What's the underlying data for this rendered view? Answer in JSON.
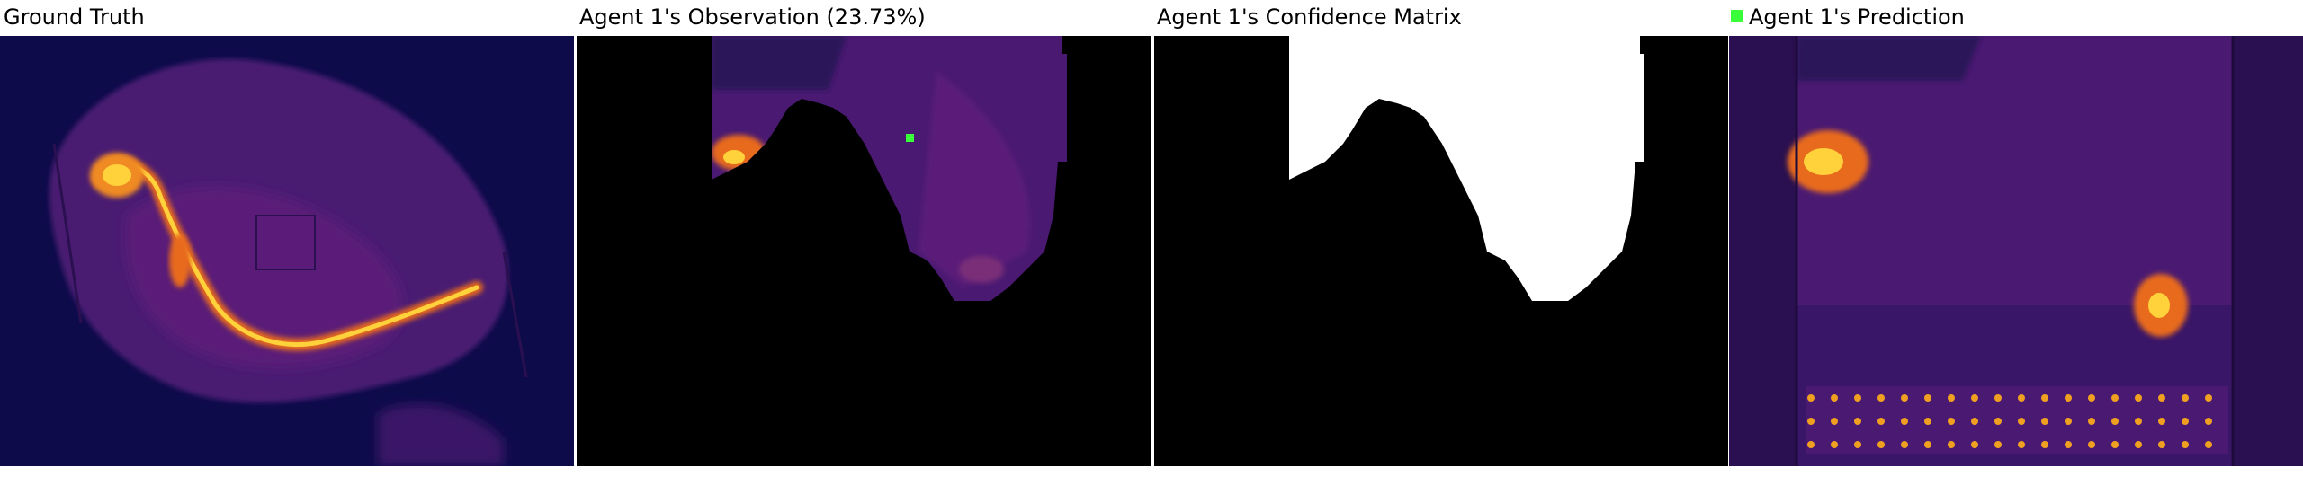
{
  "panels": [
    {
      "id": "ground-truth",
      "title": "Ground Truth"
    },
    {
      "id": "observation",
      "title": "Agent 1's Observation (23.73%)"
    },
    {
      "id": "confidence",
      "title": "Agent 1's Confidence Matrix"
    },
    {
      "id": "prediction",
      "title": "Agent 1's Prediction"
    }
  ],
  "colors": {
    "background": "#ffffff",
    "inferno_dark": "#0d0b4a",
    "inferno_purple": "#4a1a72",
    "inferno_magenta": "#7a2f78",
    "inferno_orange": "#e86b1a",
    "inferno_yellow": "#ffd23c",
    "mask_black": "#000000",
    "mask_white": "#ffffff",
    "agent_marker": "#39ff3a"
  },
  "legend": {
    "marker_icon": "green-square-icon"
  }
}
